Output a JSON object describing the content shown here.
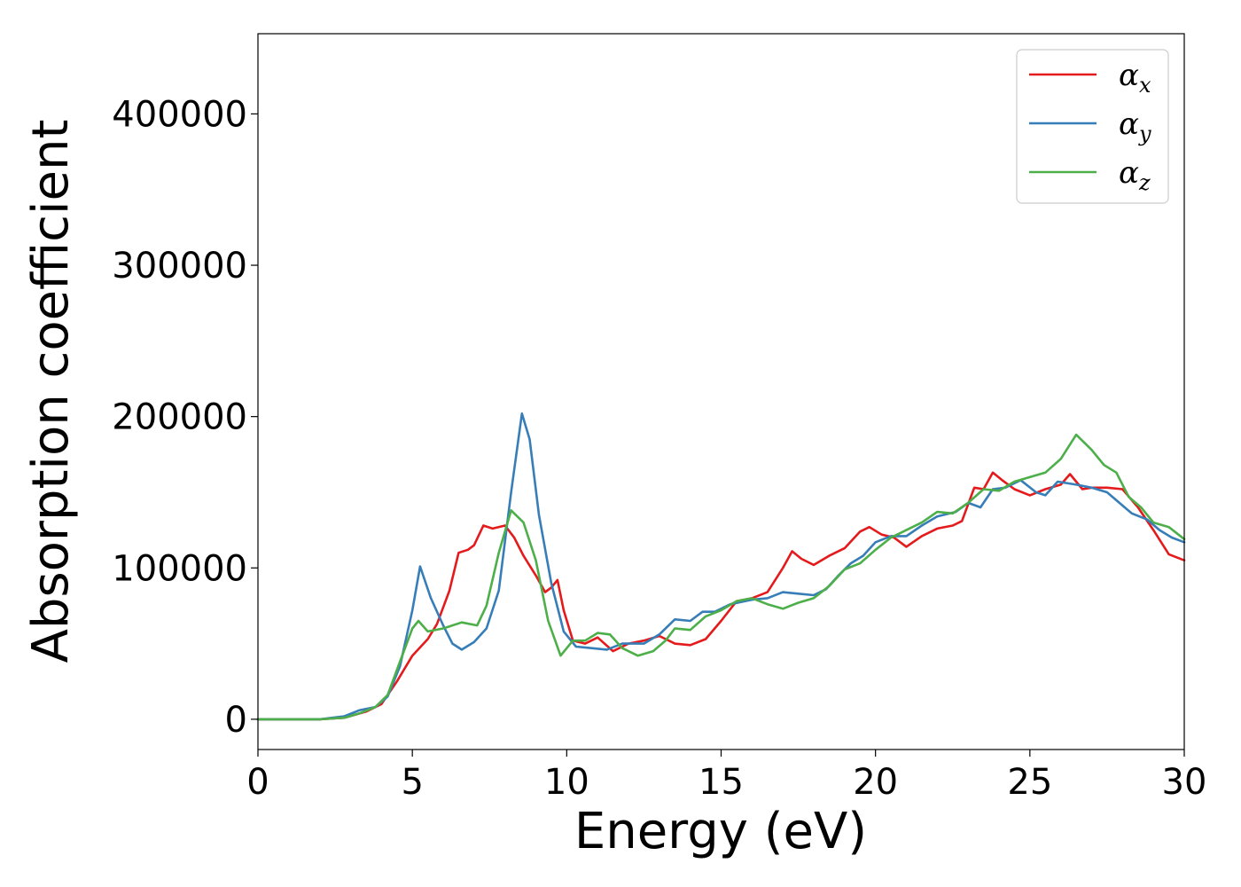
{
  "chart_data": {
    "type": "line",
    "title": "",
    "xlabel": "Energy (eV)",
    "ylabel": "Absorption coefficient",
    "xlim": [
      0,
      30
    ],
    "ylim": [
      -20000,
      453000
    ],
    "x_ticks": [
      0,
      5,
      10,
      15,
      20,
      25,
      30
    ],
    "y_ticks": [
      0,
      100000,
      200000,
      300000,
      400000
    ],
    "x_tick_labels": [
      "0",
      "5",
      "10",
      "15",
      "20",
      "25",
      "30"
    ],
    "y_tick_labels": [
      "0",
      "100000",
      "200000",
      "300000",
      "400000"
    ],
    "grid": false,
    "legend_position": "top-right",
    "series": [
      {
        "name": "αx",
        "legend_base": "α",
        "legend_sub": "x",
        "color": "#e41a1c",
        "points": [
          [
            0,
            0
          ],
          [
            2,
            0
          ],
          [
            2.8,
            1000
          ],
          [
            3.5,
            5000
          ],
          [
            4,
            10000
          ],
          [
            4.5,
            25000
          ],
          [
            5,
            42000
          ],
          [
            5.5,
            53000
          ],
          [
            5.8,
            63000
          ],
          [
            6.2,
            85000
          ],
          [
            6.5,
            110000
          ],
          [
            6.8,
            112000
          ],
          [
            7,
            115000
          ],
          [
            7.3,
            128000
          ],
          [
            7.6,
            126000
          ],
          [
            8,
            128000
          ],
          [
            8.3,
            120000
          ],
          [
            8.6,
            108000
          ],
          [
            9,
            95000
          ],
          [
            9.3,
            84000
          ],
          [
            9.5,
            87000
          ],
          [
            9.7,
            92000
          ],
          [
            9.9,
            72000
          ],
          [
            10.2,
            52000
          ],
          [
            10.6,
            50000
          ],
          [
            11,
            54000
          ],
          [
            11.5,
            45000
          ],
          [
            12,
            50000
          ],
          [
            12.5,
            52000
          ],
          [
            13,
            55000
          ],
          [
            13.5,
            50000
          ],
          [
            14,
            49000
          ],
          [
            14.5,
            53000
          ],
          [
            15,
            65000
          ],
          [
            15.5,
            78000
          ],
          [
            16,
            80000
          ],
          [
            16.5,
            84000
          ],
          [
            17,
            100000
          ],
          [
            17.3,
            111000
          ],
          [
            17.6,
            106000
          ],
          [
            18,
            102000
          ],
          [
            18.5,
            108000
          ],
          [
            19,
            113000
          ],
          [
            19.5,
            124000
          ],
          [
            19.8,
            127000
          ],
          [
            20.2,
            122000
          ],
          [
            20.6,
            120000
          ],
          [
            21,
            114000
          ],
          [
            21.5,
            121000
          ],
          [
            22,
            126000
          ],
          [
            22.5,
            128000
          ],
          [
            22.8,
            131000
          ],
          [
            23.2,
            153000
          ],
          [
            23.5,
            152000
          ],
          [
            23.8,
            163000
          ],
          [
            24.1,
            158000
          ],
          [
            24.5,
            152000
          ],
          [
            25,
            148000
          ],
          [
            25.5,
            152000
          ],
          [
            26,
            155000
          ],
          [
            26.3,
            162000
          ],
          [
            26.7,
            152000
          ],
          [
            27,
            153000
          ],
          [
            27.5,
            153000
          ],
          [
            28,
            152000
          ],
          [
            28.5,
            140000
          ],
          [
            29,
            125000
          ],
          [
            29.5,
            109000
          ],
          [
            30,
            105000
          ]
        ]
      },
      {
        "name": "αy",
        "legend_base": "α",
        "legend_sub": "y",
        "color": "#377eb8",
        "points": [
          [
            0,
            0
          ],
          [
            2,
            0
          ],
          [
            2.8,
            2000
          ],
          [
            3.3,
            6000
          ],
          [
            3.8,
            8000
          ],
          [
            4.2,
            15000
          ],
          [
            4.6,
            35000
          ],
          [
            5,
            72000
          ],
          [
            5.25,
            101000
          ],
          [
            5.6,
            80000
          ],
          [
            6,
            62000
          ],
          [
            6.3,
            50000
          ],
          [
            6.6,
            46000
          ],
          [
            7,
            51000
          ],
          [
            7.4,
            60000
          ],
          [
            7.8,
            85000
          ],
          [
            8.2,
            150000
          ],
          [
            8.55,
            202000
          ],
          [
            8.8,
            185000
          ],
          [
            9.1,
            135000
          ],
          [
            9.5,
            90000
          ],
          [
            9.9,
            58000
          ],
          [
            10.3,
            48000
          ],
          [
            10.8,
            47000
          ],
          [
            11.3,
            46000
          ],
          [
            11.8,
            50000
          ],
          [
            12.5,
            50000
          ],
          [
            13,
            56000
          ],
          [
            13.5,
            66000
          ],
          [
            14,
            65000
          ],
          [
            14.4,
            71000
          ],
          [
            14.8,
            71000
          ],
          [
            15.3,
            76000
          ],
          [
            16,
            79000
          ],
          [
            16.5,
            80000
          ],
          [
            17,
            84000
          ],
          [
            17.5,
            83000
          ],
          [
            18,
            82000
          ],
          [
            18.4,
            86000
          ],
          [
            18.8,
            95000
          ],
          [
            19.2,
            103000
          ],
          [
            19.6,
            108000
          ],
          [
            20,
            117000
          ],
          [
            20.5,
            121000
          ],
          [
            21,
            121000
          ],
          [
            21.5,
            128000
          ],
          [
            22,
            134000
          ],
          [
            22.6,
            137000
          ],
          [
            23,
            143000
          ],
          [
            23.4,
            140000
          ],
          [
            23.8,
            152000
          ],
          [
            24.2,
            153000
          ],
          [
            24.7,
            158000
          ],
          [
            25.2,
            150000
          ],
          [
            25.5,
            148000
          ],
          [
            25.9,
            157000
          ],
          [
            26.5,
            155000
          ],
          [
            27,
            153000
          ],
          [
            27.5,
            150000
          ],
          [
            27.9,
            143000
          ],
          [
            28.3,
            136000
          ],
          [
            28.8,
            132000
          ],
          [
            29.2,
            125000
          ],
          [
            29.6,
            120000
          ],
          [
            30,
            117000
          ]
        ]
      },
      {
        "name": "αz",
        "legend_base": "α",
        "legend_sub": "z",
        "color": "#4daf4a",
        "points": [
          [
            0,
            0
          ],
          [
            2,
            0
          ],
          [
            2.8,
            1000
          ],
          [
            3.3,
            4000
          ],
          [
            3.8,
            8000
          ],
          [
            4.2,
            16000
          ],
          [
            4.6,
            38000
          ],
          [
            5,
            60000
          ],
          [
            5.2,
            65000
          ],
          [
            5.5,
            58000
          ],
          [
            6,
            60000
          ],
          [
            6.6,
            64000
          ],
          [
            7.1,
            62000
          ],
          [
            7.4,
            75000
          ],
          [
            7.8,
            110000
          ],
          [
            8.2,
            138000
          ],
          [
            8.6,
            130000
          ],
          [
            9,
            105000
          ],
          [
            9.4,
            65000
          ],
          [
            9.8,
            42000
          ],
          [
            10.2,
            52000
          ],
          [
            10.6,
            52000
          ],
          [
            11,
            57000
          ],
          [
            11.4,
            56000
          ],
          [
            11.8,
            47000
          ],
          [
            12.3,
            42000
          ],
          [
            12.8,
            45000
          ],
          [
            13.2,
            52000
          ],
          [
            13.5,
            60000
          ],
          [
            14,
            59000
          ],
          [
            14.5,
            68000
          ],
          [
            15,
            72000
          ],
          [
            15.5,
            78000
          ],
          [
            16,
            80000
          ],
          [
            16.5,
            76000
          ],
          [
            17,
            73000
          ],
          [
            17.5,
            77000
          ],
          [
            18,
            80000
          ],
          [
            18.5,
            88000
          ],
          [
            19,
            99000
          ],
          [
            19.5,
            103000
          ],
          [
            20,
            112000
          ],
          [
            20.5,
            120000
          ],
          [
            21,
            125000
          ],
          [
            21.5,
            130000
          ],
          [
            22,
            137000
          ],
          [
            22.5,
            136000
          ],
          [
            23,
            143000
          ],
          [
            23.5,
            152000
          ],
          [
            24,
            151000
          ],
          [
            24.5,
            157000
          ],
          [
            25,
            160000
          ],
          [
            25.5,
            163000
          ],
          [
            26,
            172000
          ],
          [
            26.5,
            188000
          ],
          [
            27,
            178000
          ],
          [
            27.4,
            168000
          ],
          [
            27.8,
            163000
          ],
          [
            28.2,
            147000
          ],
          [
            28.6,
            140000
          ],
          [
            29,
            130000
          ],
          [
            29.5,
            127000
          ],
          [
            30,
            119000
          ]
        ]
      }
    ]
  }
}
